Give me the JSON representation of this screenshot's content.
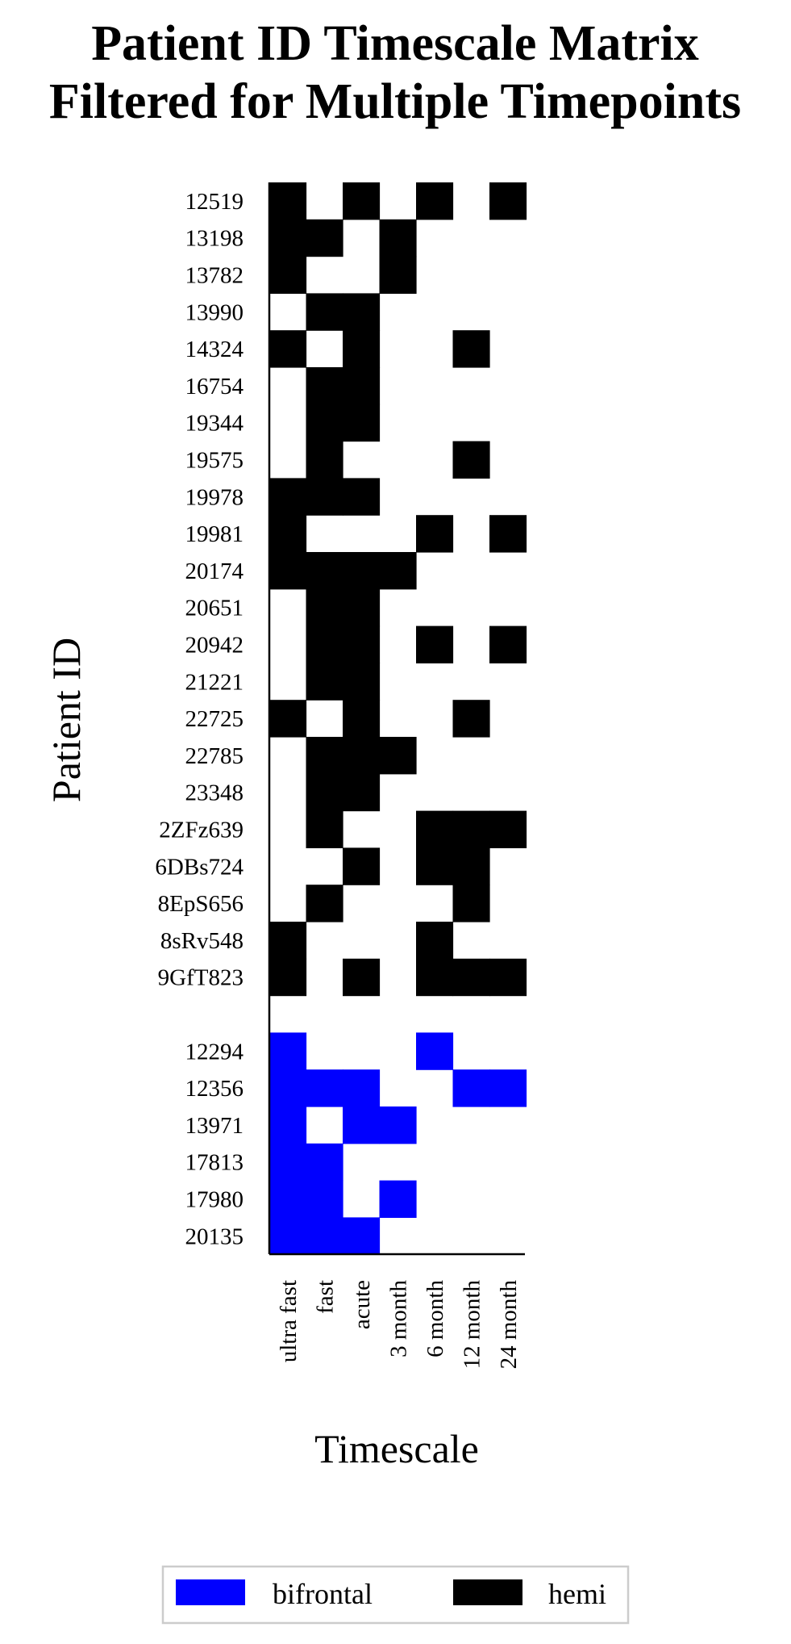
{
  "chart_data": {
    "type": "heatmap",
    "title": [
      "Patient ID Timescale Matrix",
      "Filtered for Multiple Timepoints"
    ],
    "xlabel": "Timescale",
    "ylabel": "Patient ID",
    "x_categories": [
      "ultra fast",
      "fast",
      "acute",
      "3 month",
      "6 month",
      "12 month",
      "24 month"
    ],
    "legend_position": "bottom",
    "grid": false,
    "groups": [
      {
        "name": "hemi",
        "color": "#000000",
        "rows": [
          {
            "id": "12519",
            "values": [
              1,
              0,
              1,
              0,
              1,
              0,
              1
            ]
          },
          {
            "id": "13198",
            "values": [
              1,
              1,
              0,
              1,
              0,
              0,
              0
            ]
          },
          {
            "id": "13782",
            "values": [
              1,
              0,
              0,
              1,
              0,
              0,
              0
            ]
          },
          {
            "id": "13990",
            "values": [
              0,
              1,
              1,
              0,
              0,
              0,
              0
            ]
          },
          {
            "id": "14324",
            "values": [
              1,
              0,
              1,
              0,
              0,
              1,
              0
            ]
          },
          {
            "id": "16754",
            "values": [
              0,
              1,
              1,
              0,
              0,
              0,
              0
            ]
          },
          {
            "id": "19344",
            "values": [
              0,
              1,
              1,
              0,
              0,
              0,
              0
            ]
          },
          {
            "id": "19575",
            "values": [
              0,
              1,
              0,
              0,
              0,
              1,
              0
            ]
          },
          {
            "id": "19978",
            "values": [
              1,
              1,
              1,
              0,
              0,
              0,
              0
            ]
          },
          {
            "id": "19981",
            "values": [
              1,
              0,
              0,
              0,
              1,
              0,
              1
            ]
          },
          {
            "id": "20174",
            "values": [
              1,
              1,
              1,
              1,
              0,
              0,
              0
            ]
          },
          {
            "id": "20651",
            "values": [
              0,
              1,
              1,
              0,
              0,
              0,
              0
            ]
          },
          {
            "id": "20942",
            "values": [
              0,
              1,
              1,
              0,
              1,
              0,
              1
            ]
          },
          {
            "id": "21221",
            "values": [
              0,
              1,
              1,
              0,
              0,
              0,
              0
            ]
          },
          {
            "id": "22725",
            "values": [
              1,
              0,
              1,
              0,
              0,
              1,
              0
            ]
          },
          {
            "id": "22785",
            "values": [
              0,
              1,
              1,
              1,
              0,
              0,
              0
            ]
          },
          {
            "id": "23348",
            "values": [
              0,
              1,
              1,
              0,
              0,
              0,
              0
            ]
          },
          {
            "id": "2ZFz639",
            "values": [
              0,
              1,
              0,
              0,
              1,
              1,
              1
            ]
          },
          {
            "id": "6DBs724",
            "values": [
              0,
              0,
              1,
              0,
              1,
              1,
              0
            ]
          },
          {
            "id": "8EpS656",
            "values": [
              0,
              1,
              0,
              0,
              0,
              1,
              0
            ]
          },
          {
            "id": "8sRv548",
            "values": [
              1,
              0,
              0,
              0,
              1,
              0,
              0
            ]
          },
          {
            "id": "9GfT823",
            "values": [
              1,
              0,
              1,
              0,
              1,
              1,
              1
            ]
          }
        ]
      },
      {
        "name": "bifrontal",
        "color": "#0000ff",
        "rows": [
          {
            "id": "12294",
            "values": [
              1,
              0,
              0,
              0,
              1,
              0,
              0
            ]
          },
          {
            "id": "12356",
            "values": [
              1,
              1,
              1,
              0,
              0,
              1,
              1
            ]
          },
          {
            "id": "13971",
            "values": [
              1,
              0,
              1,
              1,
              0,
              0,
              0
            ]
          },
          {
            "id": "17813",
            "values": [
              1,
              1,
              0,
              0,
              0,
              0,
              0
            ]
          },
          {
            "id": "17980",
            "values": [
              1,
              1,
              0,
              1,
              0,
              0,
              0
            ]
          },
          {
            "id": "20135",
            "values": [
              1,
              1,
              1,
              0,
              0,
              0,
              0
            ]
          }
        ]
      }
    ],
    "legend": [
      {
        "label": "bifrontal",
        "color": "#0000ff"
      },
      {
        "label": "hemi",
        "color": "#000000"
      }
    ]
  }
}
